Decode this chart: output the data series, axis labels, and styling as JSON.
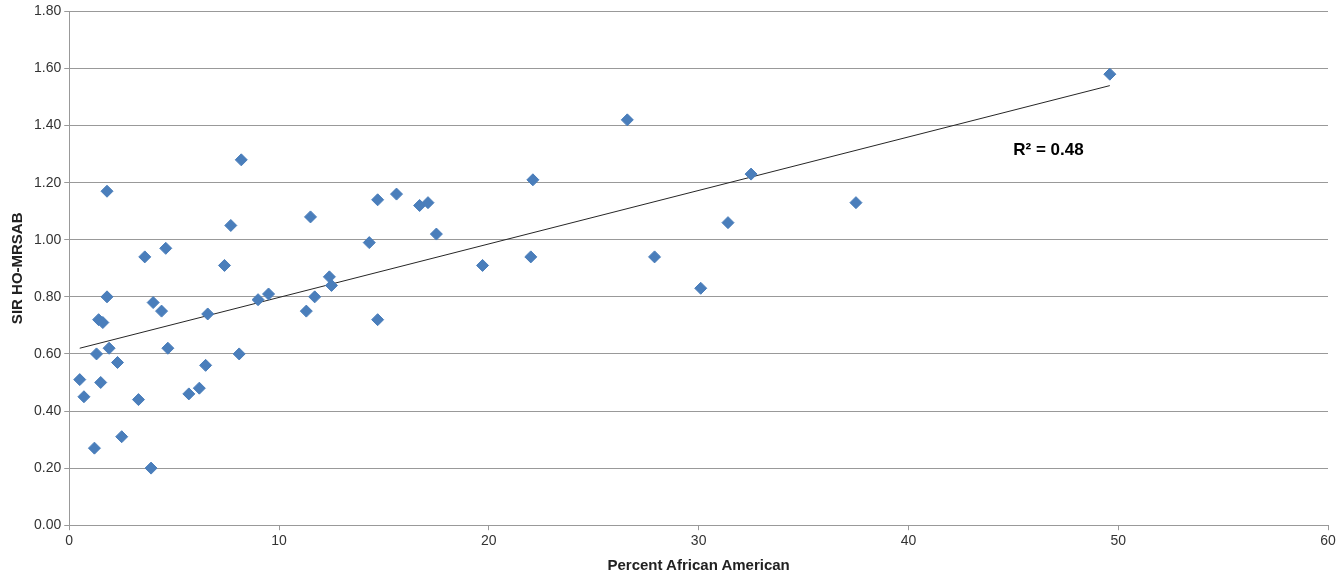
{
  "chart_data": {
    "type": "scatter",
    "xlabel": "Percent African American",
    "ylabel": "SIR HO-MRSAB",
    "xlim": [
      0,
      60
    ],
    "xticks": [
      0,
      10,
      20,
      30,
      40,
      50,
      60
    ],
    "ylim": [
      0,
      1.8
    ],
    "yticks": [
      {
        "value": 0,
        "label": "0.00"
      },
      {
        "value": 0.2,
        "label": "0.20"
      },
      {
        "value": 0.4,
        "label": "0.40"
      },
      {
        "value": 0.6,
        "label": "0.60"
      },
      {
        "value": 0.8,
        "label": "0.80"
      },
      {
        "value": 1,
        "label": "1.00"
      },
      {
        "value": 1.2,
        "label": "1.20"
      },
      {
        "value": 1.4,
        "label": "1.40"
      },
      {
        "value": 1.6,
        "label": "1.60"
      },
      {
        "value": 1.8,
        "label": "1.80"
      }
    ],
    "grid": "y",
    "legend": false,
    "marker": "diamond",
    "series": [
      {
        "color": "#4a7ebb",
        "x": [
          0.5,
          0.7,
          1.2,
          1.3,
          1.4,
          1.5,
          1.6,
          1.8,
          1.8,
          1.9,
          2.3,
          2.5,
          3.3,
          3.6,
          3.9,
          4.0,
          4.4,
          4.6,
          4.7,
          5.7,
          6.2,
          6.5,
          6.6,
          7.4,
          7.7,
          8.1,
          8.2,
          9.0,
          9.5,
          11.3,
          11.5,
          11.7,
          12.4,
          12.5,
          14.3,
          14.7,
          14.7,
          15.6,
          16.7,
          17.1,
          17.5,
          19.7,
          22.0,
          22.1,
          26.6,
          27.9,
          30.1,
          31.4,
          32.5,
          37.5,
          49.6
        ],
        "values": [
          0.51,
          0.45,
          0.27,
          0.6,
          0.72,
          0.5,
          0.71,
          1.17,
          0.8,
          0.62,
          0.57,
          0.31,
          0.44,
          0.94,
          0.2,
          0.78,
          0.75,
          0.97,
          0.62,
          0.46,
          0.48,
          0.56,
          0.74,
          0.91,
          1.05,
          0.6,
          1.28,
          0.79,
          0.81,
          0.75,
          1.08,
          0.8,
          0.87,
          0.84,
          0.99,
          1.14,
          0.72,
          1.16,
          1.12,
          1.13,
          1.02,
          0.91,
          0.94,
          1.21,
          1.42,
          0.94,
          0.83,
          1.06,
          1.23,
          1.13,
          1.58
        ]
      },
      {
        "type": "line",
        "color": "#262626",
        "marker": "none",
        "x": [
          0.5,
          49.6
        ],
        "values": [
          0.62,
          1.54
        ]
      }
    ],
    "annotations": [
      "R² = 0.48"
    ]
  }
}
